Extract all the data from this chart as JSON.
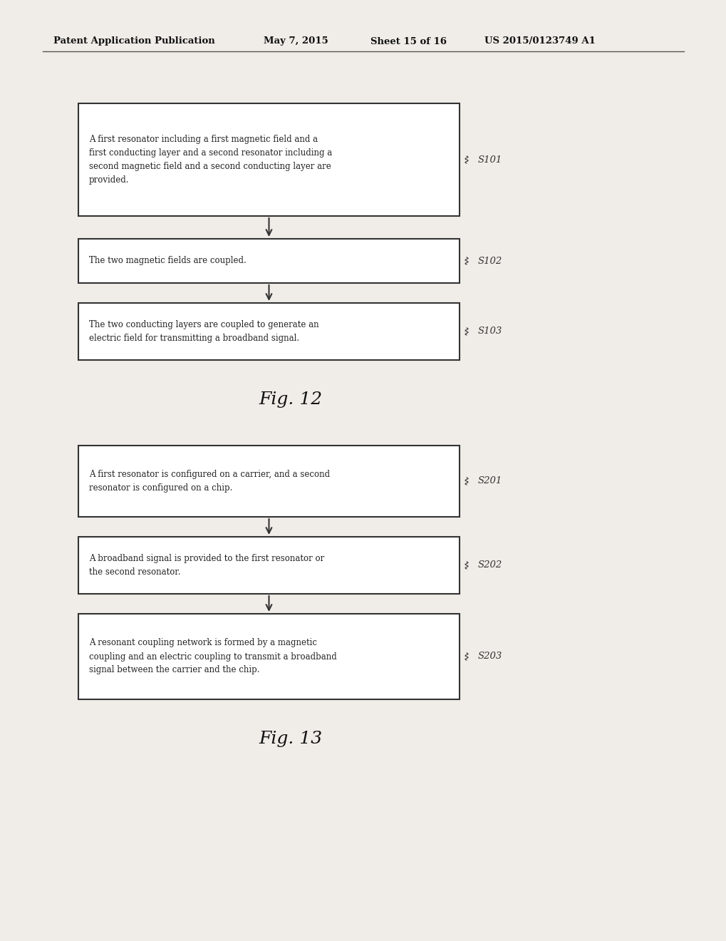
{
  "background_color": "#ffffff",
  "page_bg": "#f0ede8",
  "header_text": "Patent Application Publication",
  "header_date": "May 7, 2015",
  "header_sheet": "Sheet 15 of 16",
  "header_patent": "US 2015/0123749 A1",
  "fig12_label": "Fig. 12",
  "fig13_label": "Fig. 13",
  "fig12_boxes": [
    {
      "label": "S101",
      "text": "A first resonator including a first magnetic field and a\nfirst conducting layer and a second resonator including a\nsecond magnetic field and a second conducting layer are\nprovided."
    },
    {
      "label": "S102",
      "text": "The two magnetic fields are coupled."
    },
    {
      "label": "S103",
      "text": "The two conducting layers are coupled to generate an\nelectric field for transmitting a broadband signal."
    }
  ],
  "fig13_boxes": [
    {
      "label": "S201",
      "text": "A first resonator is configured on a carrier, and a second\nresonator is configured on a chip."
    },
    {
      "label": "S202",
      "text": "A broadband signal is provided to the first resonator or\nthe second resonator."
    },
    {
      "label": "S203",
      "text": "A resonant coupling network is formed by a magnetic\ncoupling and an electric coupling to transmit a broadband\nsignal between the carrier and the chip."
    }
  ],
  "box_edge_color": "#333333",
  "text_color": "#222222",
  "arrow_color": "#333333",
  "label_color": "#333333",
  "header_line_color": "#555555"
}
